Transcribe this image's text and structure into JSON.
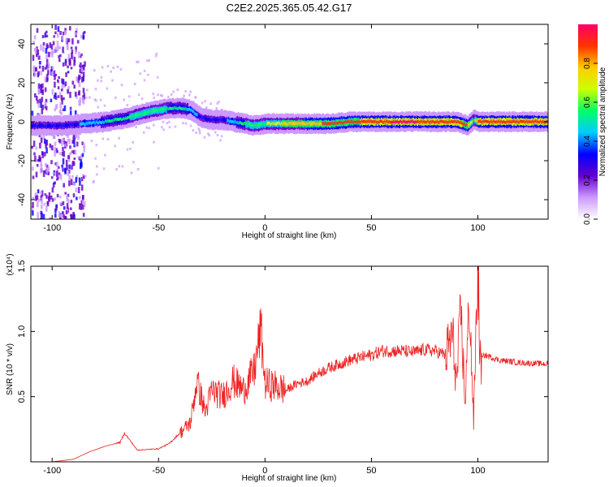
{
  "title": "C2E2.2025.365.05.42.G17",
  "chart_data": [
    {
      "type": "heatmap",
      "title": "C2E2.2025.365.05.42.G17",
      "xlabel": "Height of straight line (km)",
      "ylabel": "Frequency (Hz)",
      "xlim": [
        -110,
        133
      ],
      "ylim": [
        -50,
        50
      ],
      "xticks": [
        -100,
        -50,
        0,
        50,
        100
      ],
      "yticks": [
        -40,
        -20,
        0,
        20,
        40
      ],
      "colorbar": {
        "label": "Normalized spectral amplitude",
        "range": [
          0,
          1
        ],
        "ticks": [
          "0.0",
          "0.2",
          "0.4",
          "0.6",
          "0.8"
        ],
        "tick_values": [
          0.0,
          0.2,
          0.4,
          0.6,
          0.8
        ],
        "colors": [
          "#ffffff",
          "#cc99ff",
          "#6600cc",
          "#0000ff",
          "#00ccff",
          "#00ff66",
          "#ccff00",
          "#ffcc00",
          "#ff3300",
          "#ff0066"
        ]
      },
      "ridge": {
        "x": [
          -108,
          -95,
          -85,
          -75,
          -65,
          -55,
          -45,
          -40,
          -35,
          -30,
          -25,
          -20,
          -15,
          -10,
          -5,
          0,
          10,
          20,
          30,
          40,
          50,
          60,
          70,
          80,
          90,
          95,
          98,
          100,
          110,
          120,
          133
        ],
        "freq": [
          -2,
          -2,
          -1,
          0,
          2,
          5,
          7,
          7,
          6,
          2,
          1,
          1,
          0,
          -1,
          -2,
          -1,
          -1,
          -1,
          -1,
          0,
          0,
          0,
          0,
          0,
          0,
          -2,
          1,
          0,
          0,
          0,
          0
        ],
        "amplitude": [
          0.35,
          0.35,
          0.4,
          0.5,
          0.55,
          0.6,
          0.55,
          0.55,
          0.45,
          0.35,
          0.3,
          0.35,
          0.45,
          0.55,
          0.6,
          0.6,
          0.75,
          0.8,
          0.85,
          0.85,
          0.9,
          0.95,
          0.95,
          0.9,
          0.9,
          0.85,
          0.55,
          0.9,
          0.9,
          0.9,
          0.9
        ]
      }
    },
    {
      "type": "line",
      "xlabel": "Height of straight line (km)",
      "ylabel": "SNR (10 * v/v)",
      "y_multiplier": "(x10⁴)",
      "xlim": [
        -110,
        133
      ],
      "ylim": [
        0,
        1.5
      ],
      "xticks": [
        -100,
        -50,
        0,
        50,
        100
      ],
      "yticks": [
        0.5,
        1.0,
        1.5
      ],
      "ytick_labels": [
        "0.5",
        "1.0",
        "1.5"
      ],
      "color": "#ee2222",
      "series": [
        {
          "name": "SNR",
          "x": [
            -110,
            -100,
            -90,
            -82,
            -75,
            -68,
            -66,
            -60,
            -50,
            -45,
            -40,
            -35,
            -32,
            -28,
            -25,
            -20,
            -15,
            -10,
            -5,
            -2,
            0,
            5,
            10,
            15,
            20,
            25,
            30,
            35,
            40,
            45,
            50,
            55,
            60,
            65,
            70,
            75,
            80,
            85,
            88,
            90,
            92,
            94,
            96,
            98,
            100,
            101,
            103,
            110,
            120,
            133
          ],
          "y": [
            0.0,
            0.0,
            0.02,
            0.08,
            0.12,
            0.15,
            0.22,
            0.09,
            0.1,
            0.14,
            0.22,
            0.3,
            0.62,
            0.38,
            0.55,
            0.5,
            0.62,
            0.55,
            0.7,
            1.02,
            0.6,
            0.58,
            0.55,
            0.6,
            0.62,
            0.68,
            0.72,
            0.75,
            0.78,
            0.8,
            0.82,
            0.85,
            0.85,
            0.85,
            0.84,
            0.86,
            0.85,
            0.82,
            0.98,
            0.6,
            1.15,
            0.45,
            1.25,
            0.3,
            1.55,
            0.75,
            0.82,
            0.78,
            0.76,
            0.75
          ]
        }
      ]
    }
  ]
}
